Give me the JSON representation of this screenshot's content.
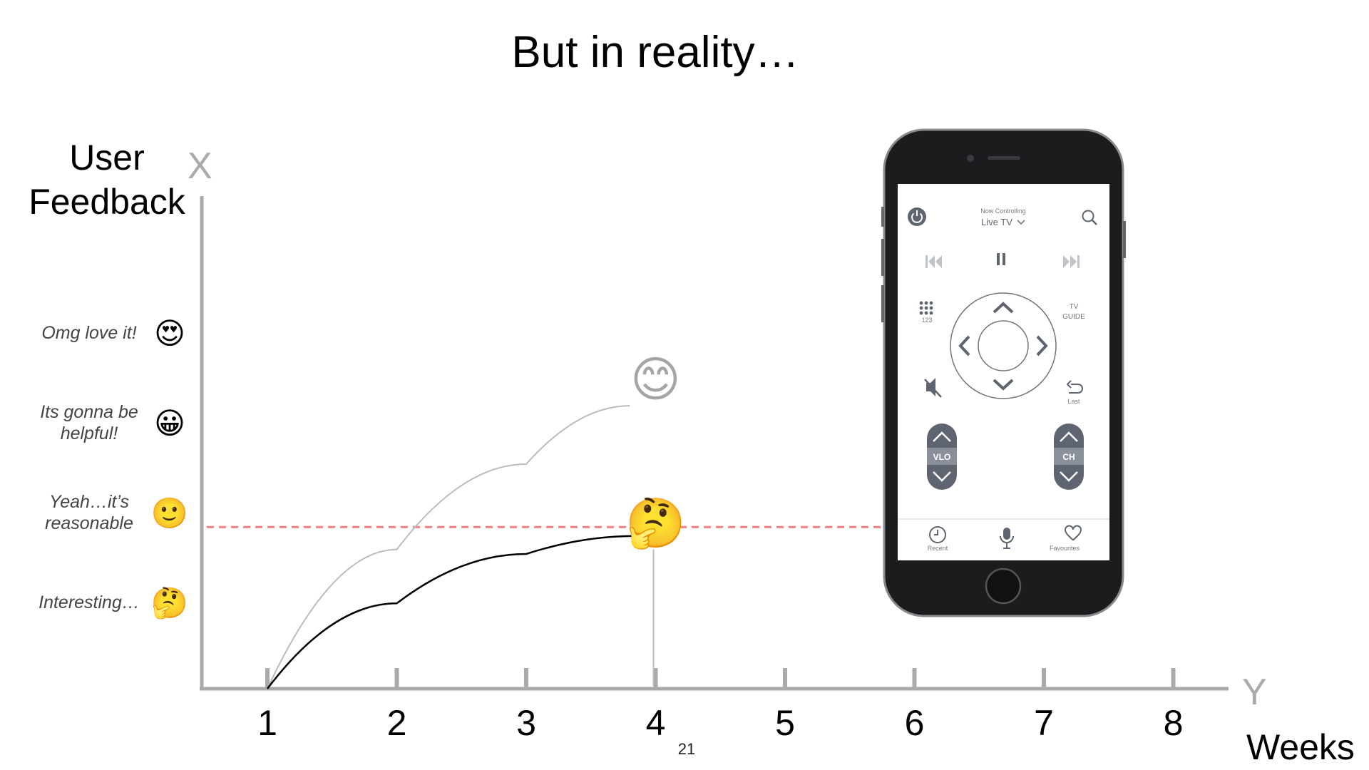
{
  "slide": {
    "title": "But in reality…",
    "page_number": "21"
  },
  "chart_data": {
    "type": "line",
    "ylabel_lines": [
      "User",
      "Feedback"
    ],
    "y_axis_letter": "X",
    "x_axis_letter": "Y",
    "xlabel": "Weeks",
    "x": [
      1,
      2,
      3,
      4,
      5,
      6,
      7,
      8
    ],
    "x_tick_labels": [
      "1",
      "2",
      "3",
      "4",
      "5",
      "6",
      "7",
      "8"
    ],
    "y_levels": [
      {
        "label_lines": [
          "Interesting…"
        ],
        "emoji": "🤔",
        "value": 1
      },
      {
        "label_lines": [
          "Yeah…it’s",
          "reasonable"
        ],
        "emoji": "🙂",
        "value": 2
      },
      {
        "label_lines": [
          "Its gonna be",
          "helpful!"
        ],
        "emoji": "😀",
        "value": 3
      },
      {
        "label_lines": [
          "Omg love it!"
        ],
        "emoji": "😍",
        "value": 4
      }
    ],
    "xlim": [
      0.5,
      8.6
    ],
    "ylim": [
      0,
      5
    ],
    "series": [
      {
        "style": "expected",
        "color": "#bbbbbb",
        "end_emoji": "😊",
        "points": [
          [
            1,
            0
          ],
          [
            2,
            1.55
          ],
          [
            3,
            2.5
          ],
          [
            3.8,
            3.15
          ]
        ],
        "end_marker": [
          4,
          3.45
        ]
      },
      {
        "style": "actual",
        "color": "#000000",
        "end_emoji": "🤔",
        "points": [
          [
            1,
            0
          ],
          [
            2,
            0.95
          ],
          [
            3,
            1.5
          ],
          [
            3.85,
            1.7
          ]
        ],
        "end_marker": [
          4,
          1.85
        ]
      }
    ],
    "reference_line": {
      "y": 1.8,
      "color": "#f08080",
      "dash": true
    },
    "marker_drop": {
      "x": 4,
      "from_y": 0,
      "to_y": 1.55
    }
  },
  "phone": {
    "header_small": "Now Controlling",
    "header_source": "Live TV",
    "numpad_label": "123",
    "tv_guide_line1": "TV",
    "tv_guide_line2": "GUIDE",
    "last_label": "Last",
    "volume_label": "VLO",
    "channel_label": "CH",
    "recent_label": "Recent",
    "favourites_label": "Favourites",
    "colors": {
      "body": "#1c1c1e",
      "accent": "#5f6570",
      "screen": "#ffffff"
    }
  }
}
